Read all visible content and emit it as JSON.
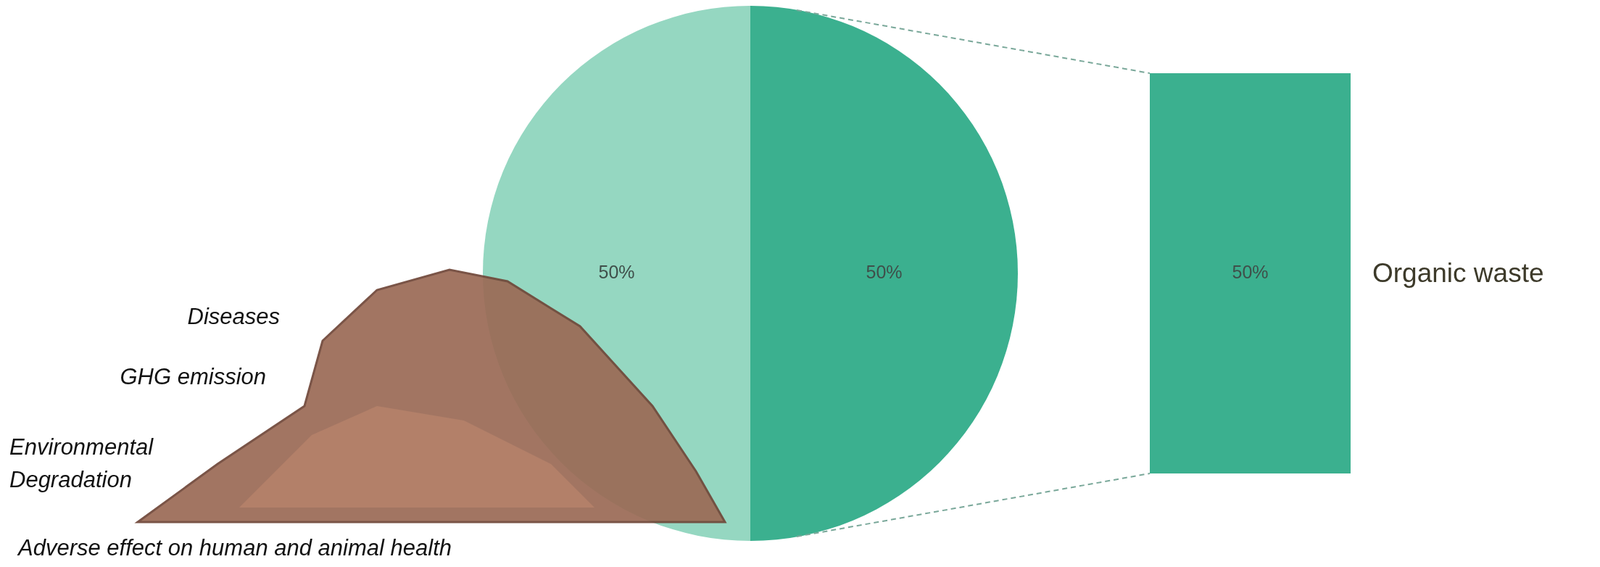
{
  "chart_data": [
    {
      "type": "pie",
      "categories": [
        null,
        null
      ],
      "values": [
        50,
        50
      ],
      "value_labels": [
        "50%",
        "50%"
      ],
      "colors": [
        "#3bb08f",
        "#95d7c1"
      ],
      "data_labels": true,
      "annotations": [
        "Diseases",
        "GHG emission",
        "Environmental Degradation",
        "Adverse effect on human and animal health"
      ]
    },
    {
      "type": "bar",
      "categories": [
        "Organic waste"
      ],
      "values": [
        50
      ],
      "value_labels": [
        "50%"
      ],
      "color": "#3bb08f",
      "ylim": [
        0,
        50
      ],
      "data_labels": true,
      "tick_labels": false
    }
  ]
}
